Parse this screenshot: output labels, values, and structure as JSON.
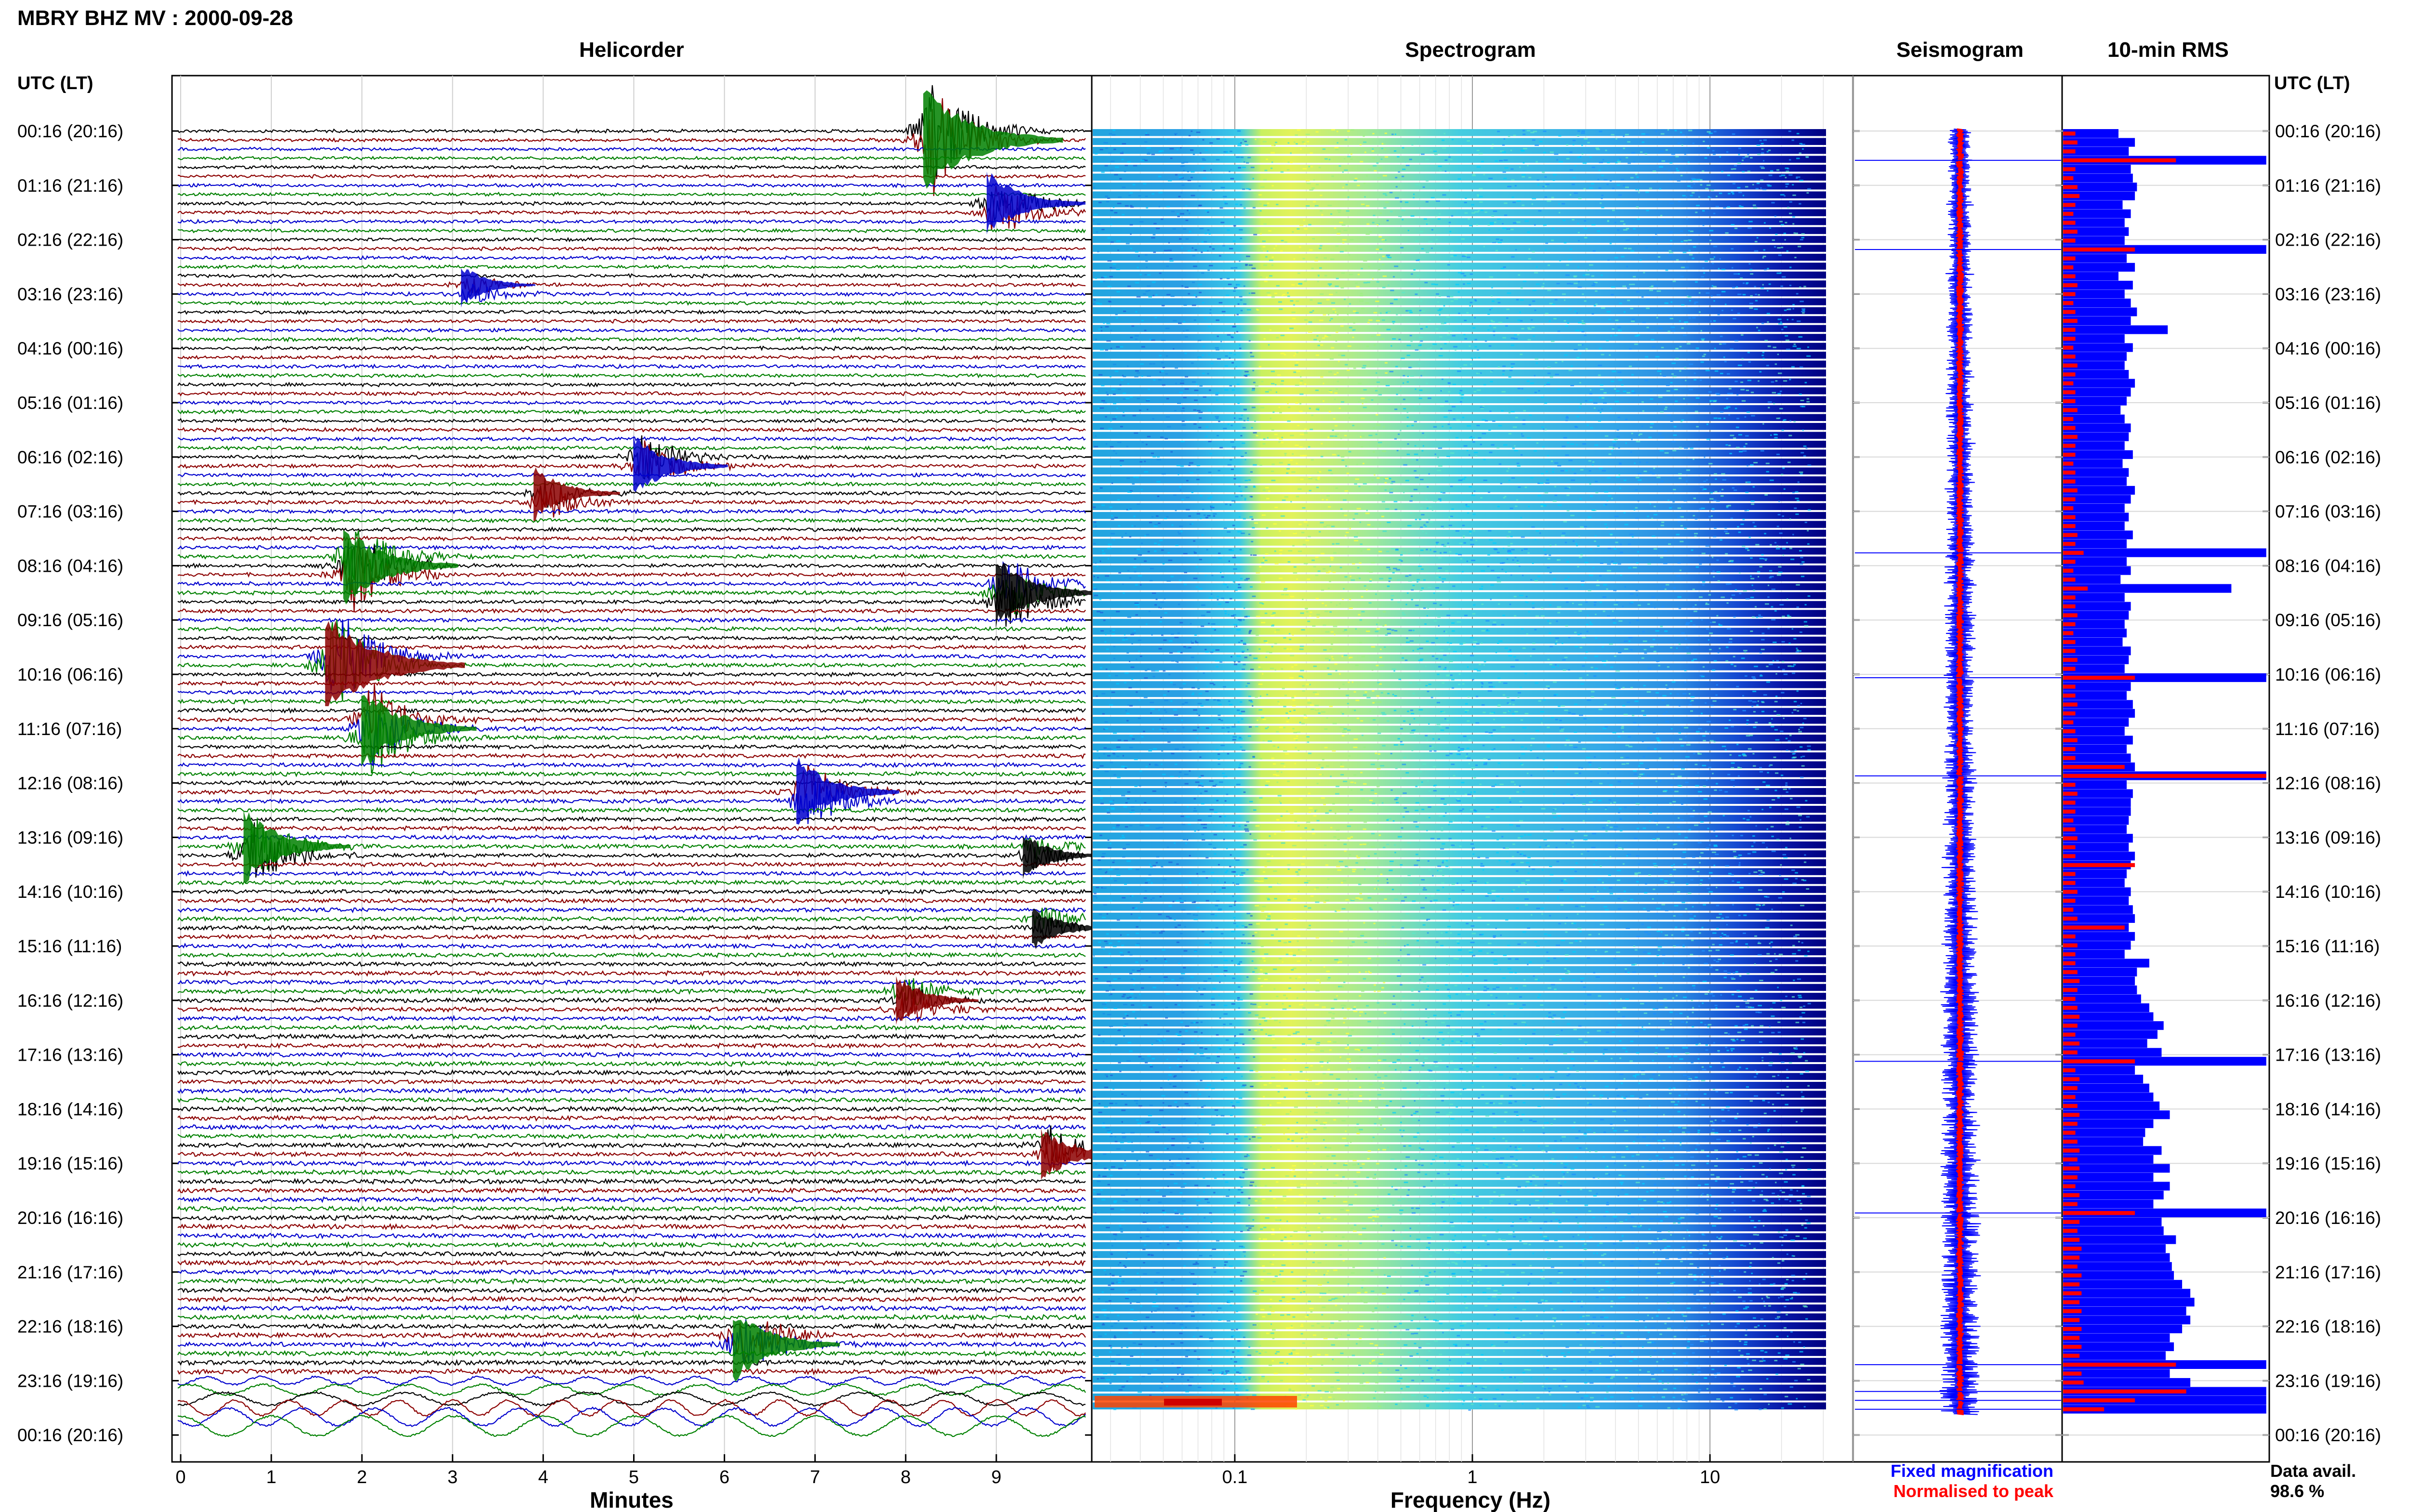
{
  "header": {
    "title": "MBRY BHZ MV : 2000-09-28"
  },
  "panels": {
    "helicorder": "Helicorder",
    "spectrogram": "Spectrogram",
    "seismogram": "Seismogram",
    "rms": "10-min RMS"
  },
  "axis_labels": {
    "time": "UTC (LT)",
    "minutes": "Minutes",
    "frequency": "Frequency (Hz)"
  },
  "legend": {
    "fixed": "Fixed magnification",
    "normalised": "Normalised to peak",
    "fixed_color": "#0000ff",
    "normalised_color": "#ff0000"
  },
  "data_availability": {
    "label": "Data avail.",
    "value": "98.6 %"
  },
  "colors": {
    "trace_cycle": [
      "#000000",
      "#8b0000",
      "#0000cd",
      "#008000"
    ],
    "rms_fixed": "#0000ff",
    "rms_normalised": "#ff0000"
  },
  "chart_data": [
    {
      "type": "line",
      "panel": "helicorder",
      "xlabel": "Minutes",
      "xlim": [
        0,
        10
      ],
      "x_ticks": [
        "0",
        "1",
        "2",
        "3",
        "4",
        "5",
        "6",
        "7",
        "8",
        "9"
      ],
      "time_labels": [
        "00:16 (20:16)",
        "01:16 (21:16)",
        "02:16 (22:16)",
        "03:16 (23:16)",
        "04:16 (00:16)",
        "05:16 (01:16)",
        "06:16 (02:16)",
        "07:16 (03:16)",
        "08:16 (04:16)",
        "09:16 (05:16)",
        "10:16 (06:16)",
        "11:16 (07:16)",
        "12:16 (08:16)",
        "13:16 (09:16)",
        "14:16 (10:16)",
        "15:16 (11:16)",
        "16:16 (12:16)",
        "17:16 (13:16)",
        "18:16 (14:16)",
        "19:16 (15:16)",
        "20:16 (16:16)",
        "21:16 (17:16)",
        "22:16 (18:16)",
        "23:16 (19:16)",
        "00:16 (20:16)"
      ],
      "traces_per_hour": 6,
      "events": [
        {
          "hour": 0.1,
          "minute": 8.3,
          "amp": 1.0,
          "color_index": 3
        },
        {
          "hour": 1.4,
          "minute": 9.0,
          "amp": 0.5,
          "color_index": 2
        },
        {
          "hour": 2.9,
          "minute": 3.2,
          "amp": 0.2,
          "color_index": 2
        },
        {
          "hour": 6.1,
          "minute": 5.1,
          "amp": 0.45,
          "color_index": 2
        },
        {
          "hour": 6.7,
          "minute": 4.0,
          "amp": 0.35,
          "color_index": 1
        },
        {
          "hour": 8.5,
          "minute": 9.1,
          "amp": 0.55,
          "color_index": 0
        },
        {
          "hour": 8.0,
          "minute": 1.9,
          "amp": 0.7,
          "color_index": 3
        },
        {
          "hour": 9.8,
          "minute": 1.7,
          "amp": 1.0,
          "color_index": 1
        },
        {
          "hour": 11.0,
          "minute": 2.1,
          "amp": 0.7,
          "color_index": 3
        },
        {
          "hour": 12.2,
          "minute": 6.9,
          "amp": 0.55,
          "color_index": 2
        },
        {
          "hour": 13.2,
          "minute": 0.8,
          "amp": 0.6,
          "color_index": 3
        },
        {
          "hour": 13.3,
          "minute": 9.4,
          "amp": 0.25,
          "color_index": 0
        },
        {
          "hour": 14.6,
          "minute": 9.5,
          "amp": 0.25,
          "color_index": 0
        },
        {
          "hour": 16.0,
          "minute": 8.0,
          "amp": 0.3,
          "color_index": 1
        },
        {
          "hour": 18.8,
          "minute": 9.6,
          "amp": 0.35,
          "color_index": 1
        },
        {
          "hour": 22.3,
          "minute": 6.2,
          "amp": 0.6,
          "color_index": 3
        }
      ]
    },
    {
      "type": "heatmap",
      "panel": "spectrogram",
      "xlabel": "Frequency (Hz)",
      "xscale": "log",
      "xlim": [
        0.025,
        40
      ],
      "x_ticks": [
        "0.1",
        "1",
        "10"
      ],
      "colormap": [
        "#00008b",
        "#0000ff",
        "#00bfff",
        "#00ffff",
        "#7fff7f",
        "#ffff00",
        "#ff8c00",
        "#ff0000"
      ],
      "rows": 144
    },
    {
      "type": "line",
      "panel": "seismogram",
      "series": [
        {
          "name": "Fixed magnification",
          "color": "#0000ff"
        },
        {
          "name": "Normalised to peak",
          "color": "#ff0000"
        }
      ]
    },
    {
      "type": "bar",
      "panel": "rms",
      "orientation": "horizontal",
      "bins": 144,
      "xlim": [
        0,
        1
      ],
      "series": [
        {
          "name": "Fixed magnification",
          "color": "#0000ff",
          "values": [
            0.27,
            0.35,
            0.32,
            0.99,
            0.33,
            0.34,
            0.36,
            0.35,
            0.29,
            0.33,
            0.3,
            0.32,
            0.3,
            0.99,
            0.31,
            0.35,
            0.27,
            0.34,
            0.3,
            0.33,
            0.36,
            0.33,
            0.51,
            0.3,
            0.34,
            0.31,
            0.3,
            0.32,
            0.35,
            0.33,
            0.31,
            0.28,
            0.3,
            0.33,
            0.32,
            0.3,
            0.34,
            0.29,
            0.32,
            0.31,
            0.35,
            0.33,
            0.3,
            0.32,
            0.3,
            0.34,
            0.31,
            0.99,
            0.31,
            0.33,
            0.28,
            0.82,
            0.3,
            0.33,
            0.32,
            0.3,
            0.31,
            0.29,
            0.33,
            0.32,
            0.3,
            0.99,
            0.33,
            0.31,
            0.34,
            0.35,
            0.32,
            0.3,
            0.34,
            0.31,
            0.33,
            0.35,
            0.99,
            0.31,
            0.34,
            0.33,
            0.33,
            0.32,
            0.31,
            0.34,
            0.32,
            0.35,
            0.33,
            0.31,
            0.3,
            0.33,
            0.32,
            0.34,
            0.35,
            0.32,
            0.35,
            0.33,
            0.3,
            0.42,
            0.36,
            0.35,
            0.36,
            0.38,
            0.42,
            0.44,
            0.49,
            0.46,
            0.41,
            0.48,
            0.99,
            0.35,
            0.39,
            0.42,
            0.44,
            0.47,
            0.52,
            0.44,
            0.4,
            0.39,
            0.48,
            0.44,
            0.52,
            0.44,
            0.52,
            0.49,
            0.44,
            0.99,
            0.48,
            0.49,
            0.55,
            0.5,
            0.52,
            0.53,
            0.54,
            0.58,
            0.62,
            0.64,
            0.6,
            0.62,
            0.58,
            0.52,
            0.54,
            0.5,
            0.99,
            0.52,
            0.62,
            0.99,
            0.99,
            0.99
          ]
        },
        {
          "name": "Normalised to peak",
          "color": "#ff0000",
          "values": [
            0.06,
            0.07,
            0.06,
            0.55,
            0.06,
            0.05,
            0.07,
            0.08,
            0.06,
            0.05,
            0.06,
            0.07,
            0.06,
            0.35,
            0.06,
            0.05,
            0.06,
            0.07,
            0.06,
            0.05,
            0.06,
            0.07,
            0.06,
            0.06,
            0.05,
            0.06,
            0.07,
            0.06,
            0.05,
            0.06,
            0.06,
            0.07,
            0.05,
            0.06,
            0.07,
            0.06,
            0.06,
            0.05,
            0.06,
            0.06,
            0.07,
            0.06,
            0.05,
            0.06,
            0.06,
            0.07,
            0.06,
            0.1,
            0.06,
            0.05,
            0.06,
            0.12,
            0.06,
            0.06,
            0.07,
            0.06,
            0.05,
            0.06,
            0.06,
            0.07,
            0.06,
            0.35,
            0.06,
            0.06,
            0.07,
            0.06,
            0.05,
            0.06,
            0.07,
            0.06,
            0.06,
            0.3,
            0.99,
            0.06,
            0.07,
            0.06,
            0.06,
            0.05,
            0.06,
            0.07,
            0.06,
            0.06,
            0.35,
            0.06,
            0.06,
            0.07,
            0.06,
            0.05,
            0.07,
            0.3,
            0.06,
            0.07,
            0.06,
            0.06,
            0.07,
            0.08,
            0.07,
            0.06,
            0.07,
            0.08,
            0.07,
            0.06,
            0.08,
            0.07,
            0.35,
            0.06,
            0.08,
            0.07,
            0.06,
            0.07,
            0.08,
            0.07,
            0.06,
            0.07,
            0.08,
            0.07,
            0.08,
            0.07,
            0.06,
            0.08,
            0.07,
            0.35,
            0.08,
            0.07,
            0.08,
            0.09,
            0.08,
            0.07,
            0.09,
            0.08,
            0.09,
            0.08,
            0.09,
            0.08,
            0.09,
            0.08,
            0.09,
            0.08,
            0.55,
            0.09,
            0.1,
            0.6,
            0.35,
            0.2
          ]
        }
      ]
    }
  ]
}
